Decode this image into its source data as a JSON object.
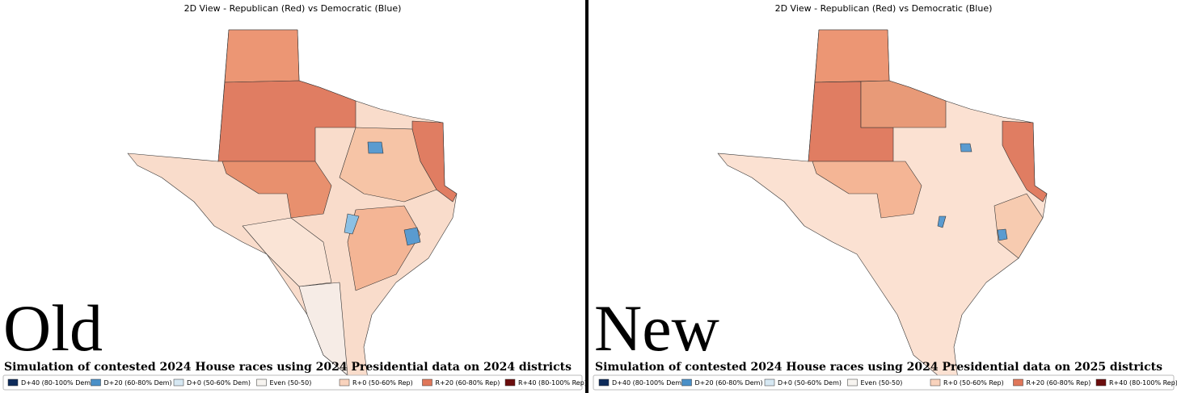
{
  "panels": [
    {
      "title": "2D View - Republican (Red) vs Democratic (Blue)",
      "label": "Old",
      "caption": "Simulation of contested 2024 House races using 2024 Presidential data on 2024 districts",
      "legend": [
        {
          "name": "D+40 (80-100% Dem)",
          "color": "#0d2b5a"
        },
        {
          "name": "D+20 (60-80% Dem)",
          "color": "#4a90c8"
        },
        {
          "name": "D+0 (50-60% Dem)",
          "color": "#d6e8f3"
        },
        {
          "name": "Even (50-50)",
          "color": "#f7f4f0"
        },
        {
          "name": "R+0 (50-60% Rep)",
          "color": "#f9d3bd"
        },
        {
          "name": "R+20 (60-80% Rep)",
          "color": "#e0775a"
        },
        {
          "name": "R+40 (80-100% Rep)",
          "color": "#6b0d0d"
        }
      ]
    },
    {
      "title": "2D View - Republican (Red) vs Democratic (Blue)",
      "label": "New",
      "caption": "Simulation of contested 2024 House races using 2024 Presidential data on 2025 districts",
      "legend": [
        {
          "name": "D+40 (80-100% Dem)",
          "color": "#0d2b5a"
        },
        {
          "name": "D+20 (60-80% Dem)",
          "color": "#4a90c8"
        },
        {
          "name": "D+0 (50-60% Dem)",
          "color": "#d6e8f3"
        },
        {
          "name": "Even (50-50)",
          "color": "#f7f4f0"
        },
        {
          "name": "R+0 (50-60% Rep)",
          "color": "#f9d3bd"
        },
        {
          "name": "R+20 (60-80% Rep)",
          "color": "#e0775a"
        },
        {
          "name": "R+40 (80-100% Rep)",
          "color": "#6b0d0d"
        }
      ]
    }
  ]
}
